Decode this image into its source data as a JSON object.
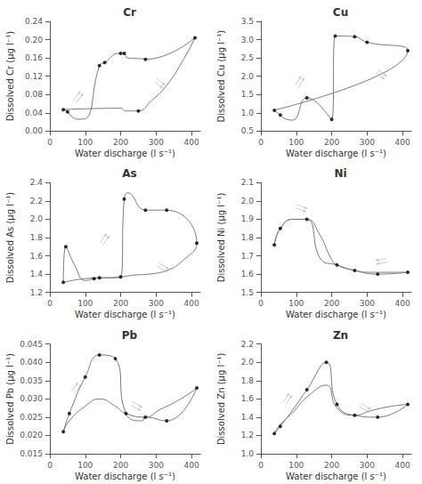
{
  "chart_data": [
    {
      "type": "line",
      "title": "Cr",
      "xlabel": "Water discharge (l s⁻¹)",
      "ylabel": "Dissolved Cr (μg l⁻¹)",
      "xlim": [
        0,
        425
      ],
      "xticks": [
        0,
        100,
        200,
        300,
        400
      ],
      "ylim": [
        0.0,
        0.24
      ],
      "yticks": [
        {
          "value": 0.0,
          "label": "0.00"
        },
        0.04,
        0.08,
        0.12,
        0.16,
        {
          "value": 0.2,
          "label": "0.20"
        },
        0.24
      ],
      "grid": false,
      "series": [
        {
          "type": "line",
          "color": "#7a7a7a",
          "x": [
            38,
            50,
            65,
            80,
            100,
            140,
            155,
            195,
            210,
            220,
            265,
            270,
            410,
            380,
            330,
            285,
            250,
            215,
            200,
            38
          ],
          "values": [
            0.047,
            0.042,
            0.03,
            0.026,
            0.027,
            0.143,
            0.15,
            0.17,
            0.17,
            0.16,
            0.158,
            0.157,
            0.204,
            0.16,
            0.1,
            0.065,
            0.044,
            0.044,
            0.05,
            0.047
          ]
        },
        {
          "type": "scatter",
          "color": "#000000",
          "x": [
            38,
            50,
            140,
            155,
            200,
            210,
            250,
            270,
            410
          ],
          "values": [
            0.047,
            0.042,
            0.143,
            0.15,
            0.17,
            0.17,
            0.044,
            0.157,
            0.204
          ]
        },
        {
          "type": "arrow",
          "color": "#b0b0b0",
          "x": [
            80,
            310
          ],
          "values": [
            0.075,
            0.105
          ],
          "angles": [
            50,
            -40
          ]
        }
      ]
    },
    {
      "type": "line",
      "title": "Cu",
      "xlabel": "Water discharge (l s⁻¹)",
      "ylabel": "Dissolved Cu (μg l⁻¹)",
      "xlim": [
        0,
        425
      ],
      "xticks": [
        0,
        100,
        200,
        300,
        400
      ],
      "ylim": [
        0.5,
        3.5
      ],
      "yticks": [
        0.5,
        {
          "value": 1.0,
          "label": "1.0"
        },
        1.5,
        {
          "value": 2.0,
          "label": "2.0"
        },
        2.5,
        {
          "value": 3.0,
          "label": "3.0"
        },
        3.5
      ],
      "grid": false,
      "series": [
        {
          "type": "line",
          "color": "#7a7a7a",
          "x": [
            38,
            55,
            70,
            90,
            130,
            200,
            210,
            220,
            265,
            300,
            415,
            38
          ],
          "values": [
            1.07,
            0.94,
            0.83,
            0.8,
            1.41,
            0.82,
            3.1,
            3.1,
            3.08,
            2.93,
            2.7,
            1.07
          ]
        },
        {
          "type": "scatter",
          "color": "#000000",
          "x": [
            38,
            55,
            130,
            200,
            210,
            265,
            300,
            415
          ],
          "values": [
            1.07,
            0.94,
            1.41,
            0.82,
            3.1,
            3.08,
            2.93,
            2.7
          ]
        },
        {
          "type": "arrow",
          "color": "#b0b0b0",
          "x": [
            110,
            340
          ],
          "values": [
            1.85,
            2.05
          ],
          "angles": [
            60,
            -40
          ]
        }
      ]
    },
    {
      "type": "line",
      "title": "As",
      "xlabel": "Water discharge (l s⁻¹)",
      "ylabel": "Dissolved As (μg l⁻¹)",
      "xlim": [
        0,
        425
      ],
      "xticks": [
        0,
        100,
        200,
        300,
        400
      ],
      "ylim": [
        1.2,
        2.4
      ],
      "yticks": [
        1.2,
        1.4,
        1.6,
        1.8,
        {
          "value": 2.0,
          "label": "2.0"
        },
        2.2,
        2.4
      ],
      "grid": false,
      "series": [
        {
          "type": "line",
          "color": "#7a7a7a",
          "x": [
            38,
            45,
            70,
            100,
            125,
            140,
            170,
            200,
            210,
            220,
            270,
            330,
            415,
            415,
            370,
            330,
            280,
            240,
            200,
            160,
            140,
            38
          ],
          "values": [
            1.31,
            1.7,
            1.5,
            1.33,
            1.35,
            1.36,
            1.36,
            1.37,
            2.22,
            2.29,
            2.1,
            2.1,
            1.74,
            1.74,
            1.53,
            1.44,
            1.4,
            1.39,
            1.37,
            1.36,
            1.36,
            1.31
          ]
        },
        {
          "type": "scatter",
          "color": "#000000",
          "x": [
            38,
            45,
            125,
            140,
            200,
            210,
            270,
            330,
            415
          ],
          "values": [
            1.31,
            1.7,
            1.35,
            1.36,
            1.37,
            2.22,
            2.1,
            2.1,
            1.74
          ]
        },
        {
          "type": "arrow",
          "color": "#b0b0b0",
          "x": [
            155,
            320
          ],
          "values": [
            1.78,
            1.47
          ],
          "angles": [
            55,
            -30
          ]
        }
      ]
    },
    {
      "type": "line",
      "title": "Ni",
      "xlabel": "Water discharge (l s⁻¹)",
      "ylabel": "Dissolved Ni (μg l⁻¹)",
      "xlim": [
        0,
        425
      ],
      "xticks": [
        0,
        100,
        200,
        300,
        400
      ],
      "ylim": [
        1.5,
        2.1
      ],
      "yticks": [
        1.5,
        1.6,
        1.7,
        1.8,
        1.9,
        {
          "value": 2.0,
          "label": "2.0"
        },
        2.1
      ],
      "grid": false,
      "series": [
        {
          "type": "line",
          "color": "#7a7a7a",
          "x": [
            38,
            55,
            90,
            130,
            165,
            200,
            215,
            265,
            330,
            415,
            370,
            310,
            265,
            215,
            170,
            130,
            90,
            55,
            38
          ],
          "values": [
            1.76,
            1.85,
            1.9,
            1.9,
            1.82,
            1.68,
            1.65,
            1.62,
            1.6,
            1.61,
            1.61,
            1.61,
            1.62,
            1.65,
            1.68,
            1.9,
            1.9,
            1.85,
            1.76
          ]
        },
        {
          "type": "scatter",
          "color": "#000000",
          "x": [
            38,
            55,
            130,
            215,
            265,
            330,
            415
          ],
          "values": [
            1.76,
            1.85,
            1.9,
            1.65,
            1.62,
            1.6,
            1.61
          ]
        },
        {
          "type": "arrow",
          "color": "#b0b0b0",
          "x": [
            115,
            340
          ],
          "values": [
            1.96,
            1.67
          ],
          "angles": [
            -20,
            -170
          ]
        }
      ]
    },
    {
      "type": "line",
      "title": "Pb",
      "xlabel": "Water discharge (l s⁻¹)",
      "ylabel": "Dissolved Pb (μg l⁻¹)",
      "xlim": [
        0,
        425
      ],
      "xticks": [
        0,
        100,
        200,
        300,
        400
      ],
      "ylim": [
        0.015,
        0.045
      ],
      "yticks": [
        0.015,
        {
          "value": 0.02,
          "label": "0.020"
        },
        0.025,
        {
          "value": 0.03,
          "label": "0.030"
        },
        0.035,
        {
          "value": 0.04,
          "label": "0.040"
        },
        0.045
      ],
      "grid": false,
      "series": [
        {
          "type": "line",
          "color": "#7a7a7a",
          "x": [
            38,
            55,
            100,
            140,
            185,
            215,
            260,
            270,
            330,
            415,
            370,
            310,
            270,
            215,
            185,
            140,
            100,
            55,
            38
          ],
          "values": [
            0.021,
            0.026,
            0.036,
            0.042,
            0.041,
            0.026,
            0.024,
            0.025,
            0.024,
            0.033,
            0.03,
            0.027,
            0.025,
            0.026,
            0.028,
            0.03,
            0.028,
            0.024,
            0.021
          ]
        },
        {
          "type": "scatter",
          "color": "#000000",
          "x": [
            38,
            55,
            100,
            140,
            185,
            215,
            270,
            330,
            415
          ],
          "values": [
            0.021,
            0.026,
            0.036,
            0.042,
            0.041,
            0.026,
            0.025,
            0.024,
            0.033
          ]
        },
        {
          "type": "arrow",
          "color": "#b0b0b0",
          "x": [
            75,
            245
          ],
          "values": [
            0.033,
            0.028
          ],
          "angles": [
            55,
            -30
          ]
        }
      ]
    },
    {
      "type": "line",
      "title": "Zn",
      "xlabel": "Water discharge (l s⁻¹)",
      "ylabel": "Dissolved Zn (μg l⁻¹)",
      "xlim": [
        0,
        425
      ],
      "xticks": [
        0,
        100,
        200,
        300,
        400
      ],
      "ylim": [
        1.0,
        2.2
      ],
      "yticks": [
        {
          "value": 1.0,
          "label": "1.0"
        },
        1.2,
        1.4,
        1.6,
        1.8,
        {
          "value": 2.0,
          "label": "2.0"
        },
        2.2
      ],
      "grid": false,
      "series": [
        {
          "type": "line",
          "color": "#7a7a7a",
          "x": [
            38,
            55,
            90,
            130,
            185,
            215,
            265,
            330,
            415,
            370,
            310,
            265,
            215,
            185,
            130,
            90,
            55,
            38
          ],
          "values": [
            1.22,
            1.3,
            1.48,
            1.7,
            2.0,
            1.54,
            1.42,
            1.4,
            1.54,
            1.52,
            1.47,
            1.42,
            1.5,
            1.75,
            1.62,
            1.45,
            1.32,
            1.22
          ]
        },
        {
          "type": "scatter",
          "color": "#000000",
          "x": [
            38,
            55,
            130,
            185,
            215,
            265,
            330,
            415
          ],
          "values": [
            1.22,
            1.3,
            1.7,
            2.0,
            1.54,
            1.42,
            1.4,
            1.54
          ]
        },
        {
          "type": "arrow",
          "color": "#b0b0b0",
          "x": [
            75,
            295
          ],
          "values": [
            1.6,
            1.5
          ],
          "angles": [
            55,
            -30
          ]
        }
      ]
    }
  ]
}
